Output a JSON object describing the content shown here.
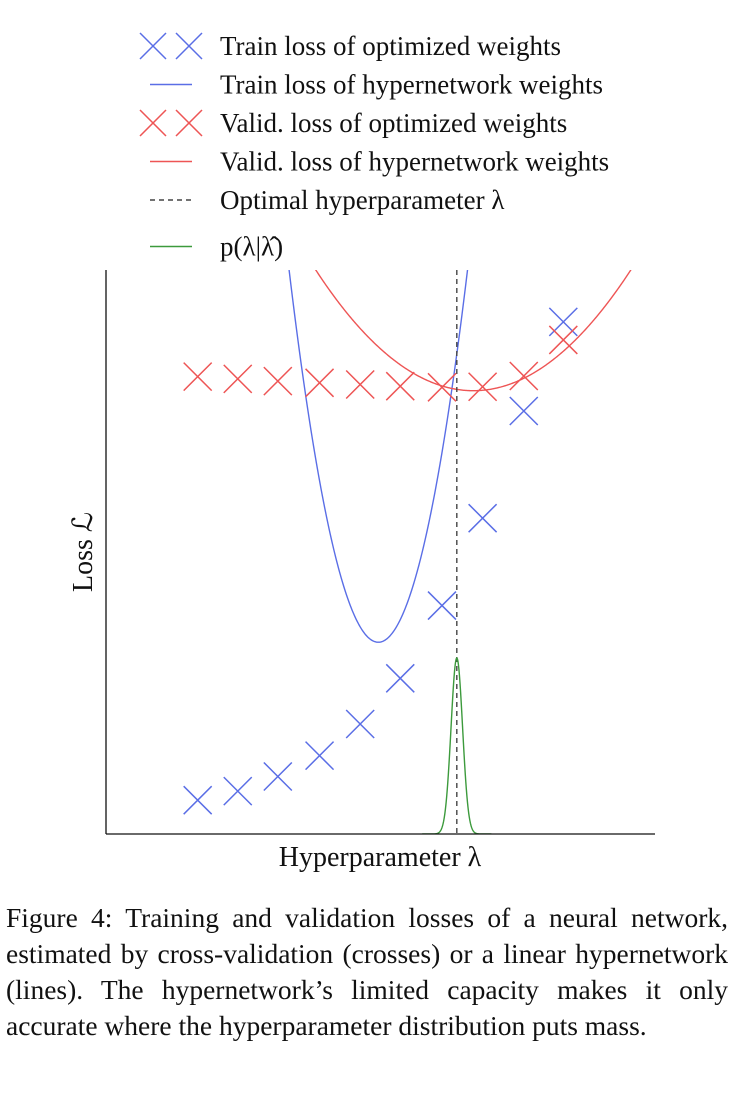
{
  "chart_data": {
    "type": "scatter",
    "xlabel": "Hyperparameter λ",
    "ylabel": "Loss ℒ",
    "xlim": [
      0,
      1
    ],
    "ylim": [
      0,
      1
    ],
    "grid": false,
    "axis_ticks": false,
    "legend_placement": "top",
    "series": [
      {
        "name": "Train loss of optimized weights",
        "kind": "crosses",
        "color": "#5a6ee6",
        "x": [
          0.167,
          0.24,
          0.313,
          0.389,
          0.463,
          0.536,
          0.612,
          0.686,
          0.761,
          0.833
        ],
        "y": [
          0.06,
          0.076,
          0.102,
          0.139,
          0.195,
          0.276,
          0.405,
          0.56,
          0.75,
          0.908
        ]
      },
      {
        "name": "Train loss of hypernetwork weights",
        "kind": "line",
        "color": "#5a6ee6",
        "vertex_x": 0.496,
        "vertex_y": 0.34,
        "curvature": 25.0
      },
      {
        "name": "Valid. loss of optimized weights",
        "kind": "crosses",
        "color": "#ee5555",
        "x": [
          0.167,
          0.24,
          0.313,
          0.389,
          0.463,
          0.536,
          0.612,
          0.686,
          0.761,
          0.833
        ],
        "y": [
          0.811,
          0.807,
          0.803,
          0.8,
          0.797,
          0.794,
          0.792,
          0.793,
          0.812,
          0.876
        ]
      },
      {
        "name": "Valid. loss of hypernetwork weights",
        "kind": "line",
        "color": "#ee5555",
        "vertex_x": 0.669,
        "vertex_y": 0.786,
        "curvature": 2.6
      },
      {
        "name": "Optimal hyperparameter λ",
        "kind": "vline",
        "color": "#444444",
        "x": 0.639
      },
      {
        "name": "p(λ|λ̂)",
        "kind": "density",
        "color": "#3c9a3c",
        "mean": 0.639,
        "sd": 0.0105,
        "peak": 0.312
      }
    ]
  },
  "caption": "Figure 4: Training and validation losses of a neural network, estimated by cross-validation (crosses) or a linear hypernetwork (lines). The hypernetwork’s limited capacity makes it only accurate where the hyperparameter distribution puts mass."
}
